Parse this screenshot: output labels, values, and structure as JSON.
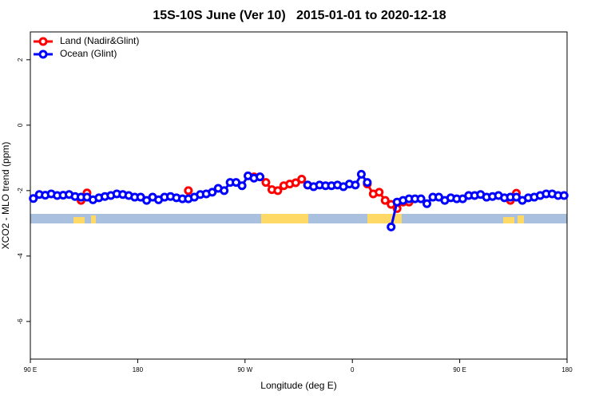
{
  "chart_data": {
    "type": "line",
    "title": "15S-10S June (Ver 10)   2015-01-01 to 2020-12-18",
    "x_label": "Longitude (deg E)",
    "y_label": "XCO2 - MLO trend (ppm)",
    "xlim": [
      90,
      540
    ],
    "xticks": [
      {
        "value": 90,
        "label": "90 E"
      },
      {
        "value": 180,
        "label": "180"
      },
      {
        "value": 270,
        "label": "90 W"
      },
      {
        "value": 360,
        "label": "0"
      },
      {
        "value": 450,
        "label": "90 E"
      },
      {
        "value": 540,
        "label": "180"
      }
    ],
    "ylim": [
      -7.15,
      2.85
    ],
    "yticks": [
      2,
      0,
      -2,
      -4,
      -6
    ],
    "legend": "top-left",
    "x": [
      92.5,
      97.5,
      102.5,
      107.5,
      112.5,
      117.5,
      122.5,
      127.5,
      132.5,
      137.5,
      142.5,
      147.5,
      152.5,
      157.5,
      162.5,
      167.5,
      172.5,
      177.5,
      182.5,
      187.5,
      192.5,
      197.5,
      202.5,
      207.5,
      212.5,
      217.5,
      222.5,
      227.5,
      232.5,
      237.5,
      242.5,
      247.5,
      252.5,
      257.5,
      262.5,
      267.5,
      272.5,
      277.5,
      282.5,
      287.5,
      292.5,
      297.5,
      302.5,
      307.5,
      312.5,
      317.5,
      322.5,
      327.5,
      332.5,
      337.5,
      342.5,
      347.5,
      352.5,
      357.5,
      362.5,
      367.5,
      372.5,
      377.5,
      382.5,
      387.5,
      392.5,
      397.5,
      402.5,
      407.5,
      412.5,
      417.5,
      422.5,
      427.5,
      432.5,
      437.5,
      442.5,
      447.5,
      452.5,
      457.5,
      462.5,
      467.5,
      472.5,
      477.5,
      482.5,
      487.5,
      492.5,
      497.5,
      502.5,
      507.5,
      512.5,
      517.5,
      522.5,
      527.5,
      532.5,
      537.5
    ],
    "series": [
      {
        "name": "Land (Nadir&Glint)",
        "color": "#ff0000",
        "values": [
          null,
          null,
          null,
          null,
          null,
          null,
          null,
          null,
          -2.3,
          -2.07,
          null,
          null,
          null,
          null,
          null,
          null,
          null,
          null,
          null,
          null,
          null,
          null,
          null,
          null,
          null,
          null,
          -2.0,
          null,
          null,
          null,
          null,
          null,
          null,
          null,
          null,
          null,
          null,
          -1.58,
          -1.58,
          -1.75,
          -1.97,
          -2.0,
          -1.85,
          -1.8,
          -1.76,
          -1.65,
          -1.83,
          null,
          null,
          null,
          null,
          null,
          null,
          null,
          null,
          null,
          -1.8,
          -2.1,
          -2.05,
          -2.3,
          -2.42,
          -2.55,
          -2.35,
          -2.35,
          null,
          null,
          null,
          null,
          null,
          null,
          null,
          null,
          null,
          null,
          null,
          null,
          null,
          null,
          null,
          null,
          -2.3,
          -2.08,
          null,
          null,
          null,
          null,
          null,
          null,
          null,
          null
        ]
      },
      {
        "name": "Ocean (Glint)",
        "color": "#0000ff",
        "values": [
          -2.24,
          -2.12,
          -2.14,
          -2.1,
          -2.15,
          -2.14,
          -2.12,
          -2.18,
          -2.2,
          -2.2,
          -2.28,
          -2.22,
          -2.18,
          -2.15,
          -2.1,
          -2.12,
          -2.15,
          -2.2,
          -2.2,
          -2.3,
          -2.2,
          -2.28,
          -2.2,
          -2.18,
          -2.22,
          -2.25,
          -2.25,
          -2.2,
          -2.12,
          -2.1,
          -2.05,
          -1.93,
          -2.0,
          -1.75,
          -1.75,
          -1.85,
          -1.55,
          -1.62,
          -1.58,
          null,
          null,
          null,
          null,
          null,
          null,
          null,
          -1.83,
          -1.88,
          -1.83,
          -1.85,
          -1.85,
          -1.83,
          -1.88,
          -1.8,
          -1.83,
          -1.5,
          -1.75,
          null,
          null,
          null,
          -3.11,
          -2.35,
          -2.3,
          -2.25,
          -2.25,
          -2.25,
          -2.4,
          -2.2,
          -2.2,
          -2.3,
          -2.22,
          -2.25,
          -2.25,
          -2.15,
          -2.15,
          -2.12,
          -2.2,
          -2.18,
          -2.15,
          -2.22,
          -2.2,
          -2.2,
          -2.3,
          -2.22,
          -2.2,
          -2.15,
          -2.1,
          -2.1,
          -2.15,
          -2.15
        ]
      }
    ]
  }
}
